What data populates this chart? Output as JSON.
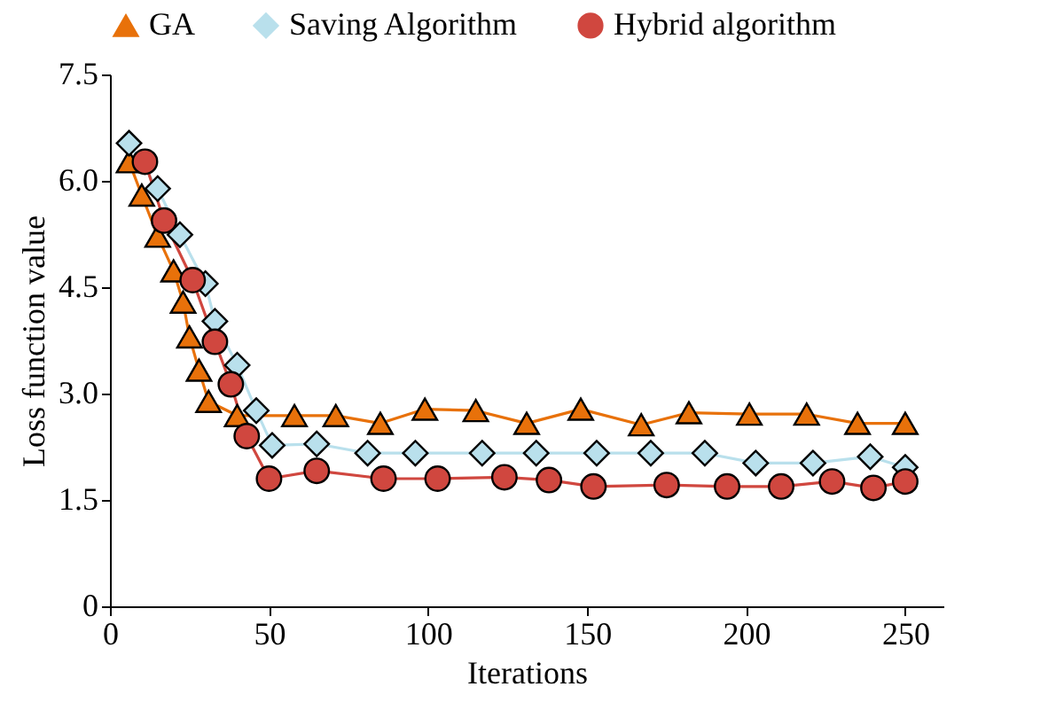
{
  "chart_data": {
    "type": "line",
    "xlabel": "Iterations",
    "ylabel": "Loss function value",
    "xlim": [
      0,
      262
    ],
    "ylim": [
      0,
      7.5
    ],
    "xticks": [
      0,
      50,
      100,
      150,
      200,
      250
    ],
    "yticks": [
      0,
      1.5,
      {
        "value": 3,
        "label": "3.0"
      },
      4.5,
      {
        "value": 6,
        "label": "6.0"
      },
      7.5
    ],
    "grid": false,
    "legend": "top",
    "line_style": "solid",
    "series": [
      {
        "name": "GA",
        "color": "#e8710a",
        "marker": "triangle",
        "x": [
          6,
          10,
          15,
          20,
          23,
          25,
          28,
          31,
          40,
          58,
          71,
          85,
          99,
          115,
          131,
          148,
          167,
          182,
          201,
          219,
          235,
          250
        ],
        "values": [
          6.27,
          5.8,
          5.22,
          4.73,
          4.29,
          3.8,
          3.33,
          2.89,
          2.69,
          2.69,
          2.69,
          2.58,
          2.78,
          2.76,
          2.58,
          2.78,
          2.56,
          2.73,
          2.71,
          2.71,
          2.58,
          2.58
        ]
      },
      {
        "name": "Saving Algorithm",
        "color": "#b9e0ec",
        "marker": "diamond",
        "x": [
          6,
          15,
          22,
          30,
          33,
          40,
          46,
          51,
          65,
          81,
          96,
          117,
          134,
          153,
          170,
          187,
          203,
          221,
          239,
          250
        ],
        "values": [
          6.53,
          5.89,
          5.24,
          4.55,
          4.02,
          3.4,
          2.76,
          2.27,
          2.29,
          2.16,
          2.16,
          2.16,
          2.16,
          2.16,
          2.16,
          2.16,
          2.02,
          2.02,
          2.11,
          1.96
        ]
      },
      {
        "name": "Hybrid algorithm",
        "color": "#d0473f",
        "marker": "circle",
        "x": [
          11,
          17,
          26,
          33,
          38,
          43,
          50,
          65,
          86,
          103,
          124,
          138,
          152,
          175,
          194,
          211,
          227,
          240,
          250
        ],
        "values": [
          6.27,
          5.44,
          4.6,
          3.73,
          3.13,
          2.4,
          1.8,
          1.91,
          1.8,
          1.8,
          1.82,
          1.78,
          1.69,
          1.71,
          1.69,
          1.69,
          1.76,
          1.67,
          1.76
        ]
      }
    ]
  }
}
